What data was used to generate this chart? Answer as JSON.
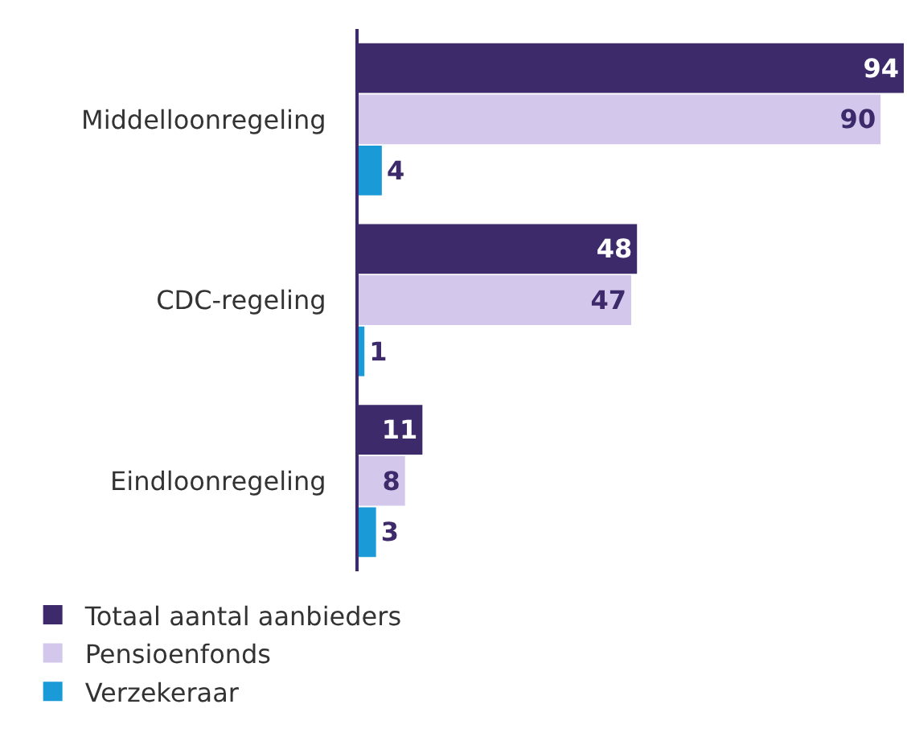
{
  "chart_data": {
    "type": "bar",
    "orientation": "horizontal",
    "categories": [
      "Middelloonregeling",
      "CDC-regeling",
      "Eindloonregeling"
    ],
    "series": [
      {
        "name": "Totaal aantal aanbieders",
        "color": "#3d2a6b",
        "values": [
          94,
          48,
          11
        ]
      },
      {
        "name": "Pensioenfonds",
        "color": "#d3c8ec",
        "values": [
          90,
          47,
          8
        ]
      },
      {
        "name": "Verzekeraar",
        "color": "#1a9ad6",
        "values": [
          4,
          1,
          3
        ]
      }
    ],
    "data_labels": true,
    "legend": "bottom left",
    "grid": false
  }
}
